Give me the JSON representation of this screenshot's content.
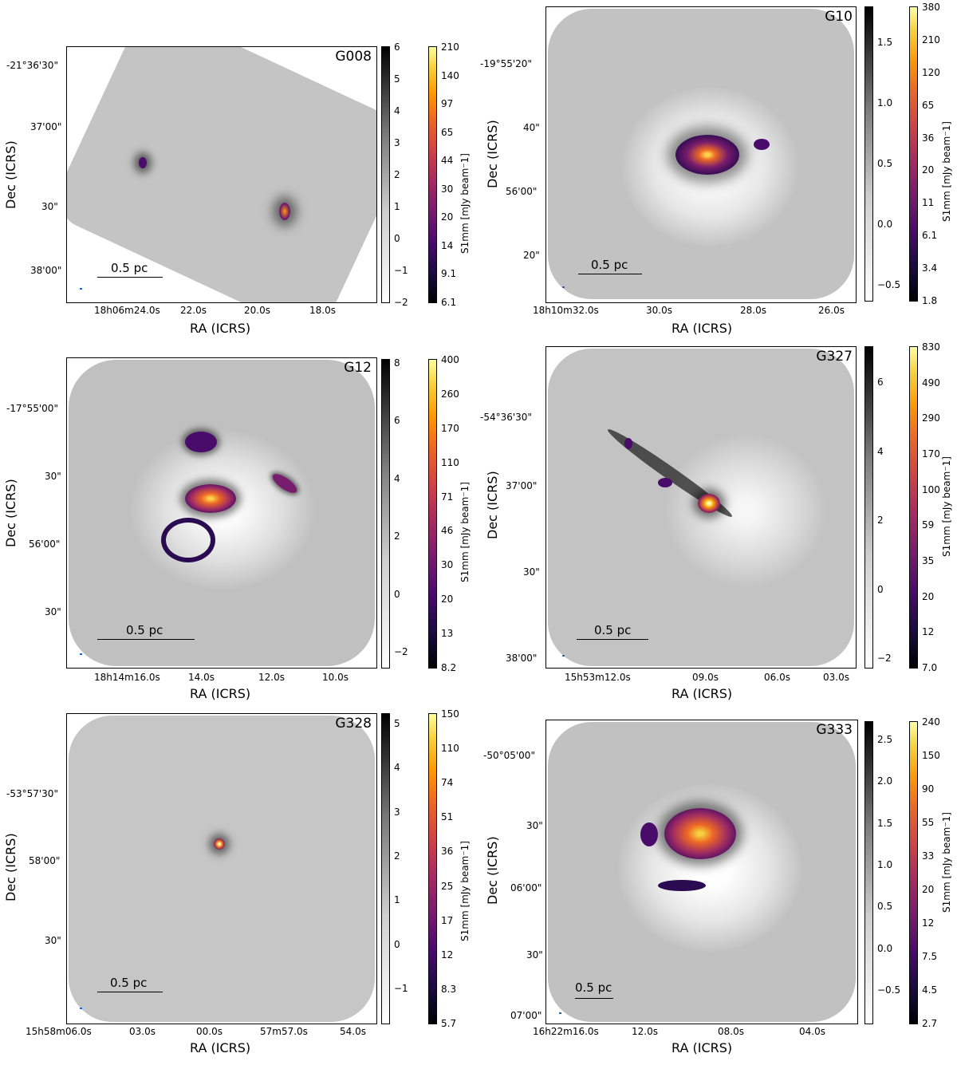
{
  "axis_labels": {
    "x": "RA (ICRS)",
    "y": "Dec (ICRS)"
  },
  "colorbar_label": "S1mm [mJy beam⁻1]",
  "scale_label": "0.5 pc",
  "panels": [
    {
      "name": "G008",
      "dec_ticks": [
        "-21°36'30\"",
        "37'00\"",
        "30\"",
        "38'00\""
      ],
      "ra_ticks": [
        "18h06m24.0s",
        "22.0s",
        "20.0s",
        "18.0s"
      ],
      "gray_ticks": [
        "6",
        "5",
        "4",
        "3",
        "2",
        "1",
        "0",
        "−1",
        "−2"
      ],
      "color_ticks": [
        "210",
        "140",
        "97",
        "65",
        "44",
        "30",
        "20",
        "14",
        "9.1",
        "6.1"
      ]
    },
    {
      "name": "G10",
      "dec_ticks": [
        "-19°55'20\"",
        "40\"",
        "56'00\"",
        "20\""
      ],
      "ra_ticks": [
        "18h10m32.0s",
        "30.0s",
        "28.0s",
        "26.0s"
      ],
      "gray_ticks": [
        "1.5",
        "1.0",
        "0.5",
        "0.0",
        "−0.5"
      ],
      "color_ticks": [
        "380",
        "210",
        "120",
        "65",
        "36",
        "20",
        "11",
        "6.1",
        "3.4",
        "1.8"
      ]
    },
    {
      "name": "G12",
      "dec_ticks": [
        "-17°55'00\"",
        "30\"",
        "56'00\"",
        "30\""
      ],
      "ra_ticks": [
        "18h14m16.0s",
        "14.0s",
        "12.0s",
        "10.0s"
      ],
      "gray_ticks": [
        "8",
        "6",
        "4",
        "2",
        "0",
        "−2"
      ],
      "color_ticks": [
        "400",
        "260",
        "170",
        "110",
        "71",
        "46",
        "30",
        "20",
        "13",
        "8.2"
      ]
    },
    {
      "name": "G327",
      "dec_ticks": [
        "-54°36'30\"",
        "37'00\"",
        "30\"",
        "38'00\""
      ],
      "ra_ticks": [
        "15h53m12.0s",
        "09.0s",
        "06.0s",
        "03.0s"
      ],
      "gray_ticks": [
        "6",
        "4",
        "2",
        "0",
        "−2"
      ],
      "color_ticks": [
        "830",
        "490",
        "290",
        "170",
        "100",
        "59",
        "35",
        "20",
        "12",
        "7.0"
      ]
    },
    {
      "name": "G328",
      "dec_ticks": [
        "-53°57'30\"",
        "58'00\"",
        "30\""
      ],
      "ra_ticks": [
        "15h58m06.0s",
        "03.0s",
        "00.0s",
        "57m57.0s",
        "54.0s"
      ],
      "gray_ticks": [
        "5",
        "4",
        "3",
        "2",
        "1",
        "0",
        "−1"
      ],
      "color_ticks": [
        "150",
        "110",
        "74",
        "51",
        "36",
        "25",
        "17",
        "12",
        "8.3",
        "5.7"
      ]
    },
    {
      "name": "G333",
      "dec_ticks": [
        "-50°05'00\"",
        "30\"",
        "06'00\"",
        "30\"",
        "07'00\""
      ],
      "ra_ticks": [
        "16h22m16.0s",
        "12.0s",
        "08.0s",
        "04.0s"
      ],
      "gray_ticks": [
        "2.5",
        "2.0",
        "1.5",
        "1.0",
        "0.5",
        "0.0",
        "−0.5"
      ],
      "color_ticks": [
        "240",
        "150",
        "90",
        "55",
        "33",
        "20",
        "12",
        "7.5",
        "4.5",
        "2.7"
      ]
    }
  ]
}
